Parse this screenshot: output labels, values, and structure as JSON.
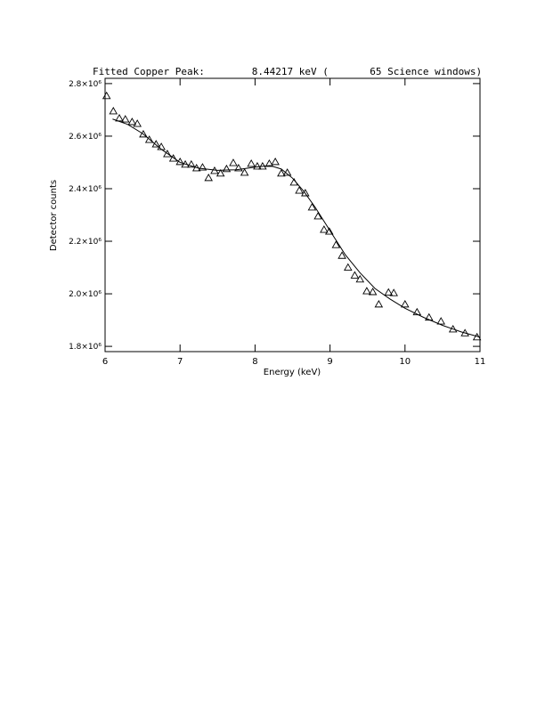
{
  "chart_data": {
    "type": "scatter",
    "title": "Fitted Copper Peak:        8.44217 keV (       65 Science windows)",
    "x_label": "Energy (keV)",
    "y_label": "Detector counts",
    "color": "#000000",
    "xlim": [
      6,
      11
    ],
    "xticks": [
      6,
      7,
      8,
      9,
      10,
      11
    ],
    "ylim": [
      1780000,
      2820000
    ],
    "yticks": [
      {
        "value": 1800000,
        "label": "1.8×10⁶"
      },
      {
        "value": 2000000,
        "label": "2.0×10⁶"
      },
      {
        "value": 2200000,
        "label": "2.2×10⁶"
      },
      {
        "value": 2400000,
        "label": "2.4×10⁶"
      },
      {
        "value": 2600000,
        "label": "2.6×10⁶"
      },
      {
        "value": 2800000,
        "label": "2.8×10⁶"
      }
    ],
    "points": {
      "x": [
        6.02,
        6.11,
        6.19,
        6.27,
        6.36,
        6.43,
        6.51,
        6.59,
        6.68,
        6.75,
        6.83,
        6.91,
        7.0,
        7.07,
        7.15,
        7.22,
        7.3,
        7.38,
        7.46,
        7.54,
        7.62,
        7.71,
        7.78,
        7.86,
        7.95,
        8.03,
        8.1,
        8.19,
        8.27,
        8.35,
        8.43,
        8.52,
        8.59,
        8.67,
        8.76,
        8.84,
        8.92,
        8.99,
        9.08,
        9.16,
        9.24,
        9.33,
        9.4,
        9.49,
        9.57,
        9.65,
        9.78,
        9.85,
        10.0,
        10.16,
        10.32,
        10.48,
        10.64,
        10.8,
        10.96
      ],
      "y": [
        2753000,
        2695000,
        2668000,
        2664000,
        2654000,
        2647000,
        2607000,
        2586000,
        2569000,
        2559000,
        2532000,
        2515000,
        2502000,
        2492000,
        2492000,
        2478000,
        2481000,
        2441000,
        2468000,
        2458000,
        2475000,
        2498000,
        2478000,
        2461000,
        2495000,
        2485000,
        2485000,
        2495000,
        2502000,
        2458000,
        2461000,
        2424000,
        2393000,
        2383000,
        2329000,
        2295000,
        2244000,
        2237000,
        2186000,
        2145000,
        2100000,
        2070000,
        2055000,
        2010000,
        2007000,
        1960000,
        2005000,
        2003000,
        1960000,
        1930000,
        1910000,
        1895000,
        1865000,
        1850000,
        1835000
      ]
    },
    "fit": {
      "x": [
        6.1,
        6.3,
        6.5,
        6.75,
        7.0,
        7.25,
        7.5,
        7.75,
        8.0,
        8.2,
        8.35,
        8.5,
        8.65,
        8.8,
        9.0,
        9.2,
        9.4,
        9.6,
        9.8,
        10.0,
        10.25,
        10.5,
        10.75,
        11.0
      ],
      "y": [
        2665000,
        2645000,
        2610000,
        2550000,
        2500000,
        2478000,
        2470000,
        2472000,
        2482000,
        2488000,
        2475000,
        2440000,
        2390000,
        2330000,
        2240000,
        2150000,
        2080000,
        2020000,
        1980000,
        1945000,
        1910000,
        1880000,
        1855000,
        1835000
      ]
    }
  }
}
